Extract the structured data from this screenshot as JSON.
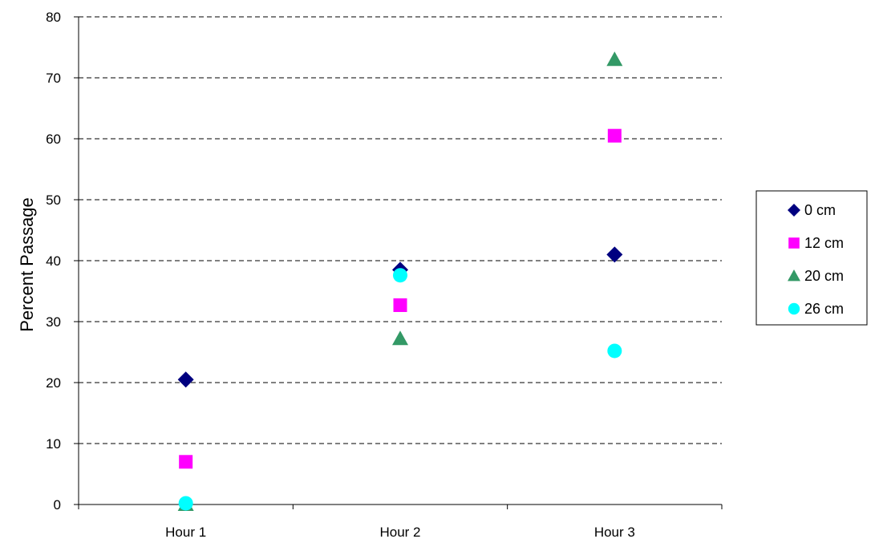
{
  "chart_data": {
    "type": "scatter",
    "title": "",
    "xlabel": "",
    "ylabel": "Percent  Passage",
    "categories": [
      "Hour 1",
      "Hour 2",
      "Hour 3"
    ],
    "ylim": [
      0,
      80
    ],
    "yticks": [
      0,
      10,
      20,
      30,
      40,
      50,
      60,
      70,
      80
    ],
    "grid": "horizontal-dashed",
    "legend_position": "right",
    "series": [
      {
        "name": "0 cm",
        "marker": "diamond",
        "color": "#000080",
        "values": [
          20.5,
          38.5,
          41
        ]
      },
      {
        "name": "12 cm",
        "marker": "square",
        "color": "#FF00FF",
        "values": [
          7,
          32.7,
          60.5
        ]
      },
      {
        "name": "20 cm",
        "marker": "triangle",
        "color": "#339966",
        "values": [
          0,
          27.2,
          73
        ]
      },
      {
        "name": "26 cm",
        "marker": "circle",
        "color": "#00FFFF",
        "values": [
          0.2,
          37.6,
          25.2
        ]
      }
    ]
  }
}
